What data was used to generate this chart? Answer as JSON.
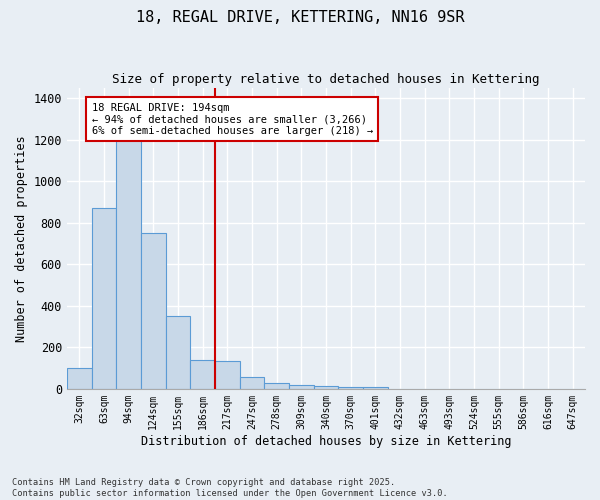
{
  "title1": "18, REGAL DRIVE, KETTERING, NN16 9SR",
  "title2": "Size of property relative to detached houses in Kettering",
  "xlabel": "Distribution of detached houses by size in Kettering",
  "ylabel": "Number of detached properties",
  "bar_color": "#c8d8e8",
  "bar_edge_color": "#5b9bd5",
  "background_color": "#e8eef4",
  "grid_color": "#ffffff",
  "categories": [
    "32sqm",
    "63sqm",
    "94sqm",
    "124sqm",
    "155sqm",
    "186sqm",
    "217sqm",
    "247sqm",
    "278sqm",
    "309sqm",
    "340sqm",
    "370sqm",
    "401sqm",
    "432sqm",
    "463sqm",
    "493sqm",
    "524sqm",
    "555sqm",
    "586sqm",
    "616sqm",
    "647sqm"
  ],
  "values": [
    100,
    870,
    1270,
    750,
    350,
    140,
    135,
    55,
    30,
    20,
    15,
    10,
    8,
    0,
    0,
    0,
    0,
    0,
    0,
    0,
    0
  ],
  "ylim": [
    0,
    1450
  ],
  "yticks": [
    0,
    200,
    400,
    600,
    800,
    1000,
    1200,
    1400
  ],
  "vline_color": "#cc0000",
  "annotation_text": "18 REGAL DRIVE: 194sqm\n← 94% of detached houses are smaller (3,266)\n6% of semi-detached houses are larger (218) →",
  "annotation_box_color": "#ffffff",
  "annotation_border_color": "#cc0000",
  "footer1": "Contains HM Land Registry data © Crown copyright and database right 2025.",
  "footer2": "Contains public sector information licensed under the Open Government Licence v3.0.",
  "figsize": [
    6.0,
    5.0
  ],
  "dpi": 100
}
